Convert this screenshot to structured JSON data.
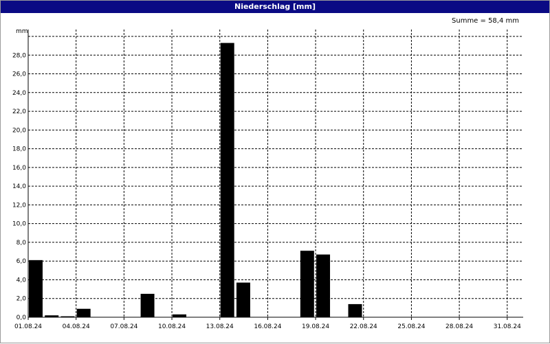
{
  "window": {
    "title": "Niederschlag [mm]"
  },
  "summary": "Summe = 58,4 mm",
  "chart_data": {
    "type": "bar",
    "title": "Niederschlag [mm]",
    "ylabel": "mm",
    "xlabel": "",
    "ylim": [
      0,
      30
    ],
    "grid": true,
    "xrange": [
      "01.08.24",
      "01.09.24"
    ],
    "x_ticks": [
      "01.08.24",
      "04.08.24",
      "07.08.24",
      "10.08.24",
      "13.08.24",
      "16.08.24",
      "19.08.24",
      "22.08.24",
      "25.08.24",
      "28.08.24",
      "31.08.24"
    ],
    "y_ticks": [
      "0,0",
      "2,0",
      "4,0",
      "6,0",
      "8,0",
      "10,0",
      "12,0",
      "14,0",
      "16,0",
      "18,0",
      "20,0",
      "22,0",
      "24,0",
      "26,0",
      "28,0"
    ],
    "bar_color": "#000000",
    "categories": [
      "01.08.24",
      "02.08.24",
      "03.08.24",
      "04.08.24",
      "08.08.24",
      "10.08.24",
      "13.08.24",
      "14.08.24",
      "18.08.24",
      "19.08.24",
      "21.08.24"
    ],
    "values": [
      6.1,
      0.2,
      0.1,
      0.9,
      2.5,
      0.3,
      29.3,
      3.7,
      7.1,
      6.7,
      1.4
    ]
  }
}
